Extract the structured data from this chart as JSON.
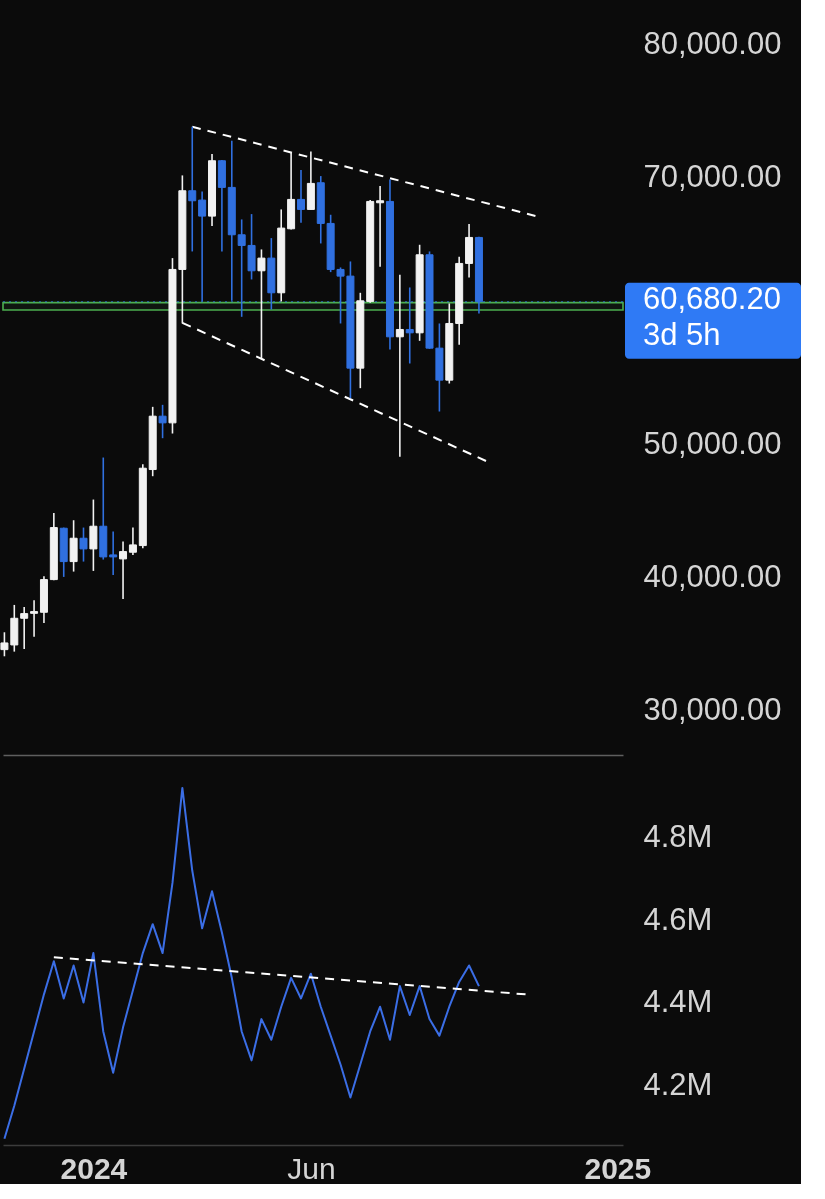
{
  "chart_data": [
    {
      "type": "candlestick",
      "xlim": [
        "2023-10-29",
        "2025-01-10"
      ],
      "ylim": [
        26700,
        83300
      ],
      "yticks": [
        {
          "value": 30000,
          "label": "30,000.00"
        },
        {
          "value": 40000,
          "label": "40,000.00"
        },
        {
          "value": 50000,
          "label": "50,000.00"
        },
        {
          "value": 70000,
          "label": "70,000.00"
        },
        {
          "value": 80000,
          "label": "80,000.00"
        }
      ],
      "tick_labels": "y",
      "x": [
        "2023-10-30",
        "2023-11-06",
        "2023-11-13",
        "2023-11-20",
        "2023-11-27",
        "2023-12-04",
        "2023-12-11",
        "2023-12-18",
        "2023-12-25",
        "2024-01-01",
        "2024-01-08",
        "2024-01-15",
        "2024-01-22",
        "2024-01-29",
        "2024-02-05",
        "2024-02-12",
        "2024-02-19",
        "2024-02-26",
        "2024-03-04",
        "2024-03-11",
        "2024-03-18",
        "2024-03-25",
        "2024-04-01",
        "2024-04-08",
        "2024-04-15",
        "2024-04-22",
        "2024-04-29",
        "2024-05-06",
        "2024-05-13",
        "2024-05-20",
        "2024-05-27",
        "2024-06-03",
        "2024-06-10",
        "2024-06-17",
        "2024-06-24",
        "2024-07-01",
        "2024-07-08",
        "2024-07-15",
        "2024-07-22",
        "2024-07-29",
        "2024-08-05",
        "2024-08-12",
        "2024-08-19",
        "2024-08-26",
        "2024-09-02",
        "2024-09-09",
        "2024-09-16",
        "2024-09-23",
        "2024-09-30"
      ],
      "ohlc": [
        [
          34600,
          35900,
          34100,
          35100
        ],
        [
          34950,
          37950,
          34450,
          36950
        ],
        [
          36950,
          37800,
          34650,
          37300
        ],
        [
          37320,
          38300,
          35570,
          37450
        ],
        [
          37400,
          40100,
          36600,
          39850
        ],
        [
          39850,
          44850,
          39800,
          43750
        ],
        [
          43700,
          43750,
          40050,
          41200
        ],
        [
          41200,
          44300,
          40450,
          42950
        ],
        [
          42950,
          43750,
          41200,
          42150
        ],
        [
          42150,
          45850,
          40500,
          43850
        ],
        [
          43850,
          49000,
          41350,
          41550
        ],
        [
          41700,
          43450,
          40200,
          41550
        ],
        [
          41400,
          42700,
          38400,
          41950
        ],
        [
          41900,
          43750,
          41700,
          42450
        ],
        [
          42400,
          48500,
          42200,
          48200
        ],
        [
          48100,
          52800,
          47600,
          52100
        ],
        [
          52100,
          52950,
          50450,
          51600
        ],
        [
          51600,
          63950,
          50800,
          63100
        ],
        [
          63100,
          70150,
          59050,
          69000
        ],
        [
          69000,
          73800,
          64450,
          68250
        ],
        [
          68300,
          68950,
          60700,
          67100
        ],
        [
          67100,
          71750,
          66350,
          71250
        ],
        [
          71250,
          71300,
          64450,
          69250
        ],
        [
          69250,
          72750,
          60750,
          65700
        ],
        [
          65700,
          66850,
          59550,
          64900
        ],
        [
          64900,
          67250,
          62350,
          63000
        ],
        [
          63000,
          64600,
          56450,
          63950
        ],
        [
          63950,
          65450,
          60100,
          61350
        ],
        [
          61350,
          67600,
          60700,
          66200
        ],
        [
          66150,
          71900,
          66100,
          68350
        ],
        [
          68350,
          70550,
          66600,
          67600
        ],
        [
          67600,
          71950,
          67600,
          69550
        ],
        [
          69600,
          70100,
          65050,
          66550
        ],
        [
          66550,
          67200,
          62900,
          63100
        ],
        [
          63100,
          63250,
          59050,
          62600
        ],
        [
          62600,
          63700,
          53450,
          55700
        ],
        [
          55700,
          61350,
          54200,
          60750
        ],
        [
          60700,
          68300,
          60600,
          68200
        ],
        [
          68100,
          69350,
          63300,
          68250
        ],
        [
          68200,
          69850,
          57100,
          58050
        ],
        [
          58050,
          62700,
          49050,
          58600
        ],
        [
          58600,
          61750,
          56050,
          58350
        ],
        [
          58350,
          64950,
          57750,
          64200
        ],
        [
          64200,
          64450,
          57150,
          57200
        ],
        [
          57200,
          59050,
          52450,
          54800
        ],
        [
          54800,
          60550,
          54550,
          59050
        ],
        [
          59050,
          64050,
          57450,
          63550
        ],
        [
          63550,
          66500,
          62500,
          65500
        ],
        [
          65500,
          65550,
          59800,
          60680.2
        ]
      ],
      "colors": [
        "#f2f2f2",
        "#f2f2f2",
        "#f2f2f2",
        "#f2f2f2",
        "#f2f2f2",
        "#f2f2f2",
        "#3070e0",
        "#f2f2f2",
        "#3070e0",
        "#f2f2f2",
        "#3070e0",
        "#3070e0",
        "#f2f2f2",
        "#f2f2f2",
        "#f2f2f2",
        "#f2f2f2",
        "#3070e0",
        "#f2f2f2",
        "#f2f2f2",
        "#3070e0",
        "#3070e0",
        "#f2f2f2",
        "#3070e0",
        "#3070e0",
        "#3070e0",
        "#3070e0",
        "#f2f2f2",
        "#3070e0",
        "#f2f2f2",
        "#f2f2f2",
        "#3070e0",
        "#f2f2f2",
        "#3070e0",
        "#3070e0",
        "#3070e0",
        "#3070e0",
        "#f2f2f2",
        "#f2f2f2",
        "#f2f2f2",
        "#3070e0",
        "#f2f2f2",
        "#3070e0",
        "#f2f2f2",
        "#3070e0",
        "#3070e0",
        "#f2f2f2",
        "#f2f2f2",
        "#f2f2f2",
        "#3070e0"
      ],
      "series": [
        {
          "type": "line",
          "x": [
            "2024-03-11",
            "2024-11-09"
          ],
          "values": [
            73800,
            67110
          ],
          "color": "#ffffff",
          "line_style": "dashed"
        },
        {
          "type": "line",
          "x": [
            "2024-03-04",
            "2024-10-05"
          ],
          "values": [
            59100,
            48740
          ],
          "color": "#ffffff",
          "line_style": "dashed"
        }
      ],
      "bands": [
        {
          "axis": "y",
          "from": 60060,
          "to": 60610,
          "color": "#4caf50"
        }
      ],
      "ref_lines": [
        {
          "axis": "y",
          "value": 60680.2,
          "label": "60,680.20\n3d 5h",
          "color": "#2f7af5",
          "line_style": "dotted"
        }
      ]
    },
    {
      "type": "line",
      "xlim": [
        "2023-10-29",
        "2025-01-10"
      ],
      "ylim": [
        4055000,
        4995000
      ],
      "yticks": [
        {
          "value": 4200000,
          "label": "4.2M"
        },
        {
          "value": 4400000,
          "label": "4.4M"
        },
        {
          "value": 4600000,
          "label": "4.6M"
        },
        {
          "value": 4800000,
          "label": "4.8M"
        }
      ],
      "xticks": [
        {
          "value": "2024-01-01",
          "label": "2024"
        },
        {
          "value": "2024-06-03",
          "label": "Jun"
        },
        {
          "value": "2025-01-06",
          "label": "2025"
        }
      ],
      "x": [
        "2023-10-30",
        "2023-11-06",
        "2023-11-13",
        "2023-11-20",
        "2023-11-27",
        "2023-12-04",
        "2023-12-11",
        "2023-12-18",
        "2023-12-25",
        "2024-01-01",
        "2024-01-08",
        "2024-01-15",
        "2024-01-22",
        "2024-01-29",
        "2024-02-05",
        "2024-02-12",
        "2024-02-19",
        "2024-02-26",
        "2024-03-04",
        "2024-03-11",
        "2024-03-18",
        "2024-03-25",
        "2024-04-01",
        "2024-04-08",
        "2024-04-15",
        "2024-04-22",
        "2024-04-29",
        "2024-05-06",
        "2024-05-13",
        "2024-05-20",
        "2024-05-27",
        "2024-06-03",
        "2024-06-10",
        "2024-06-17",
        "2024-06-24",
        "2024-07-01",
        "2024-07-08",
        "2024-07-15",
        "2024-07-22",
        "2024-07-29",
        "2024-08-05",
        "2024-08-12",
        "2024-08-19",
        "2024-08-26",
        "2024-09-02",
        "2024-09-09",
        "2024-09-16",
        "2024-09-23",
        "2024-09-30"
      ],
      "series": [
        {
          "color": "#3b6ee6",
          "values": [
            4070000,
            4150000,
            4240000,
            4330000,
            4420000,
            4500000,
            4410000,
            4490000,
            4400000,
            4520000,
            4330000,
            4230000,
            4340000,
            4430000,
            4520000,
            4590000,
            4520000,
            4690000,
            4920000,
            4720000,
            4580000,
            4670000,
            4570000,
            4460000,
            4330000,
            4260000,
            4360000,
            4310000,
            4390000,
            4460000,
            4410000,
            4470000,
            4390000,
            4320000,
            4250000,
            4170000,
            4250000,
            4330000,
            4390000,
            4310000,
            4440000,
            4370000,
            4440000,
            4360000,
            4320000,
            4390000,
            4450000,
            4490000,
            4440000
          ]
        },
        {
          "type": "line",
          "x": [
            "2023-12-04",
            "2024-11-02"
          ],
          "values": [
            4510000,
            4420000
          ],
          "color": "#ffffff",
          "line_style": "dashed"
        }
      ]
    }
  ]
}
